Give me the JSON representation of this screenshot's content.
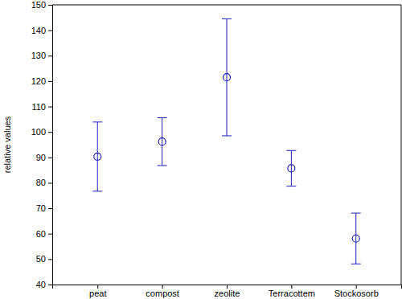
{
  "chart_data": {
    "type": "errorbar",
    "y_label": "relative values",
    "categories": [
      "peat",
      "compost",
      "zeolite",
      "Terracottem",
      "Stockosorb"
    ],
    "values": [
      90.3,
      96.2,
      121.5,
      85.7,
      58.1
    ],
    "errors": [
      13.6,
      9.4,
      23.0,
      7.0,
      10.0
    ],
    "color": "#1f1fbf",
    "marker": "circle",
    "ylim": [
      40,
      150
    ],
    "yticks": [
      40,
      50,
      60,
      70,
      80,
      90,
      100,
      110,
      120,
      130,
      140,
      150
    ],
    "grid": false
  }
}
